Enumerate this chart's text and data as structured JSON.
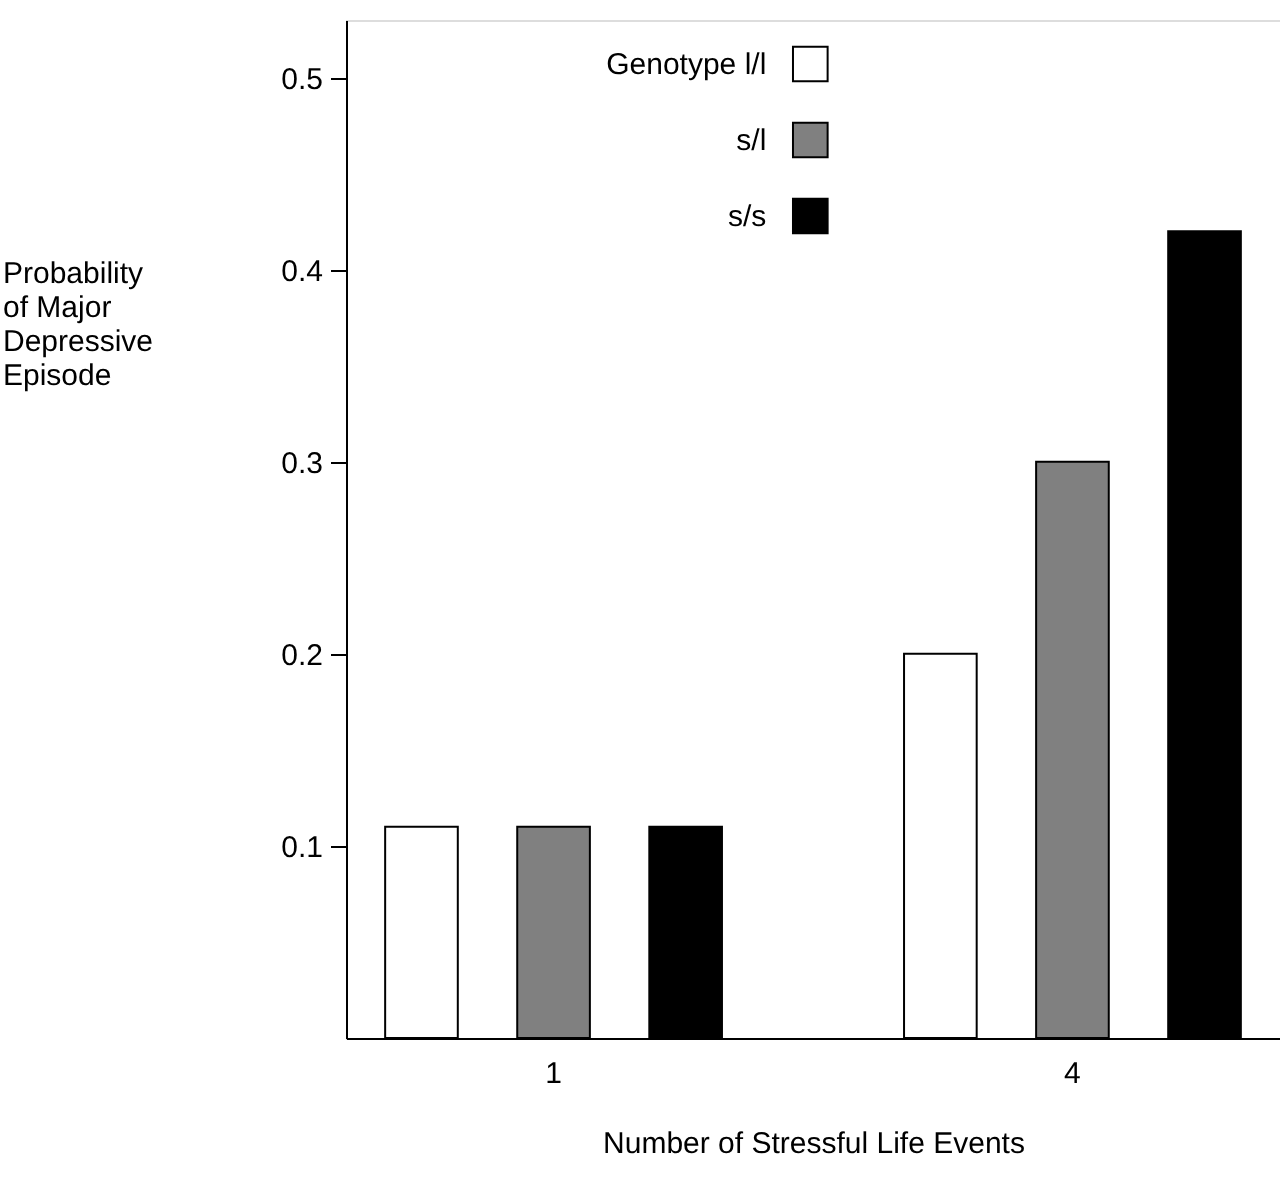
{
  "chart_data": {
    "type": "bar",
    "categories": [
      "1",
      "4"
    ],
    "xlabel": "Number of Stressful Life Events",
    "ylabel": "Probability of Major Depressive Episode",
    "legend_title": "Genotype",
    "series": [
      {
        "name": "l/l",
        "color": "#ffffff",
        "values": [
          0.11,
          0.2
        ]
      },
      {
        "name": "s/l",
        "color": "#808080",
        "values": [
          0.11,
          0.3
        ]
      },
      {
        "name": "s/s",
        "color": "#000000",
        "values": [
          0.11,
          0.42
        ]
      }
    ],
    "ylim": [
      0,
      0.53
    ],
    "yticks": [
      0.1,
      0.2,
      0.3,
      0.4,
      0.5
    ],
    "grid": false,
    "legend": "top"
  }
}
